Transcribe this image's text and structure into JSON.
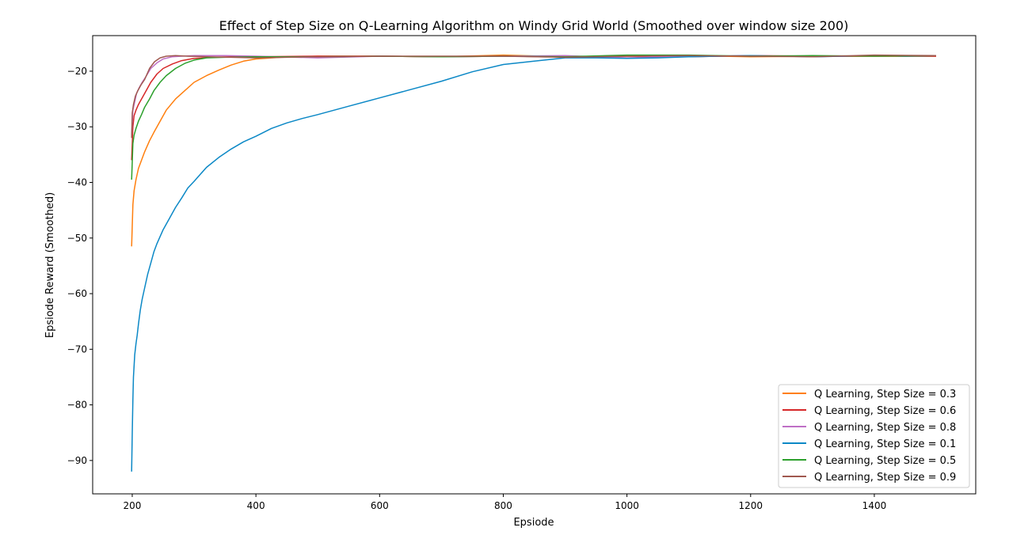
{
  "chart_data": {
    "type": "line",
    "title": "Effect of Step Size on Q-Learning Algorithm on Windy Grid World (Smoothed over window size 200)",
    "xlabel": "Epsiode",
    "ylabel": "Epsiode Reward (Smoothed)",
    "xlim": [
      136,
      1564
    ],
    "ylim": [
      -96,
      -13.6
    ],
    "xticks": [
      200,
      400,
      600,
      800,
      1000,
      1200,
      1400
    ],
    "yticks": [
      -90,
      -80,
      -70,
      -60,
      -50,
      -40,
      -30,
      -20
    ],
    "ytick_labels": [
      "−90",
      "−80",
      "−70",
      "−60",
      "−50",
      "−40",
      "−30",
      "−20"
    ],
    "grid": false,
    "legend_position": "lower right",
    "series": [
      {
        "name": "Q Learning, Step Size = 0.3",
        "color": "#ff7f0e",
        "x": [
          199,
          201,
          203,
          206,
          210,
          215,
          220,
          228,
          235,
          245,
          255,
          270,
          285,
          300,
          320,
          340,
          360,
          380,
          400,
          440,
          500,
          600,
          700,
          800,
          900,
          1000,
          1100,
          1200,
          1300,
          1400,
          1500
        ],
        "y": [
          -51.5,
          -44,
          -41.5,
          -39.5,
          -37.5,
          -36,
          -34.5,
          -32.5,
          -31,
          -29,
          -27,
          -25,
          -23.5,
          -22,
          -20.8,
          -19.8,
          -18.9,
          -18.2,
          -17.8,
          -17.5,
          -17.3,
          -17.3,
          -17.4,
          -17.1,
          -17.4,
          -17.3,
          -17.2,
          -17.4,
          -17.3,
          -17.3,
          -17.3
        ]
      },
      {
        "name": "Q Learning, Step Size = 0.6",
        "color": "#d62728",
        "x": [
          199,
          201,
          203,
          206,
          210,
          215,
          220,
          230,
          240,
          250,
          265,
          280,
          300,
          330,
          360,
          400,
          500,
          600,
          700,
          800,
          900,
          1000,
          1100,
          1200,
          1300,
          1400,
          1500
        ],
        "y": [
          -36,
          -30,
          -28,
          -27,
          -26,
          -25,
          -24,
          -22,
          -20.5,
          -19.5,
          -18.7,
          -18.1,
          -17.7,
          -17.5,
          -17.4,
          -17.4,
          -17.3,
          -17.3,
          -17.4,
          -17.3,
          -17.4,
          -17.3,
          -17.4,
          -17.2,
          -17.3,
          -17.3,
          -17.3
        ]
      },
      {
        "name": "Q Learning, Step Size = 0.8",
        "color": "#bf6fc6",
        "x": [
          199,
          201,
          204,
          207,
          211,
          216,
          222,
          230,
          240,
          250,
          265,
          280,
          300,
          350,
          400,
          500,
          600,
          700,
          800,
          900,
          1000,
          1100,
          1200,
          1300,
          1400,
          1500
        ],
        "y": [
          -31.5,
          -27,
          -25.5,
          -24,
          -23,
          -22,
          -21,
          -19.5,
          -18.5,
          -17.8,
          -17.4,
          -17.3,
          -17.2,
          -17.2,
          -17.3,
          -17.6,
          -17.3,
          -17.4,
          -17.3,
          -17.2,
          -17.6,
          -17.3,
          -17.2,
          -17.4,
          -17.2,
          -17.2
        ]
      },
      {
        "name": "Q Learning, Step Size = 0.1",
        "color": "#0b88c6",
        "x": [
          199,
          200,
          201,
          202,
          204,
          206,
          208,
          210,
          213,
          216,
          220,
          225,
          230,
          235,
          240,
          250,
          260,
          270,
          280,
          290,
          300,
          320,
          340,
          360,
          380,
          400,
          425,
          450,
          475,
          500,
          550,
          600,
          650,
          700,
          750,
          800,
          850,
          900,
          950,
          1000,
          1050,
          1100,
          1150,
          1200,
          1250,
          1300,
          1350,
          1400,
          1450,
          1500
        ],
        "y": [
          -92,
          -85,
          -79,
          -75,
          -71,
          -69,
          -67.5,
          -65.5,
          -63,
          -61,
          -59,
          -56.5,
          -54.5,
          -52.5,
          -51,
          -48.5,
          -46.5,
          -44.5,
          -42.8,
          -41,
          -39.8,
          -37.3,
          -35.5,
          -34,
          -32.7,
          -31.7,
          -30.3,
          -29.3,
          -28.5,
          -27.8,
          -26.3,
          -24.8,
          -23.3,
          -21.8,
          -20.1,
          -18.8,
          -18.2,
          -17.6,
          -17.6,
          -17.7,
          -17.6,
          -17.4,
          -17.3,
          -17.2,
          -17.3,
          -17.4,
          -17.3,
          -17.2,
          -17.3,
          -17.2
        ]
      },
      {
        "name": "Q Learning, Step Size = 0.5",
        "color": "#2ca02c",
        "x": [
          199,
          201,
          203,
          206,
          210,
          215,
          220,
          228,
          235,
          245,
          255,
          270,
          285,
          300,
          320,
          350,
          400,
          500,
          600,
          700,
          800,
          900,
          1000,
          1100,
          1200,
          1300,
          1400,
          1500
        ],
        "y": [
          -39.5,
          -33,
          -31.5,
          -30.3,
          -29,
          -27.8,
          -26.5,
          -25,
          -23.5,
          -22,
          -20.8,
          -19.5,
          -18.6,
          -18,
          -17.6,
          -17.5,
          -17.4,
          -17.4,
          -17.3,
          -17.4,
          -17.3,
          -17.4,
          -17.1,
          -17.1,
          -17.3,
          -17.2,
          -17.3,
          -17.2
        ]
      },
      {
        "name": "Q Learning, Step Size = 0.9",
        "color": "#a0584f",
        "x": [
          199,
          200,
          202,
          205,
          209,
          214,
          220,
          228,
          236,
          245,
          255,
          270,
          290,
          320,
          360,
          400,
          500,
          600,
          700,
          800,
          900,
          1000,
          1100,
          1200,
          1300,
          1400,
          1500
        ],
        "y": [
          -32,
          -27.5,
          -26,
          -24.5,
          -23.5,
          -22.5,
          -21.5,
          -19.5,
          -18.3,
          -17.6,
          -17.3,
          -17.2,
          -17.3,
          -17.4,
          -17.5,
          -17.6,
          -17.4,
          -17.3,
          -17.3,
          -17.3,
          -17.5,
          -17.3,
          -17.2,
          -17.3,
          -17.4,
          -17.1,
          -17.2
        ]
      }
    ]
  }
}
